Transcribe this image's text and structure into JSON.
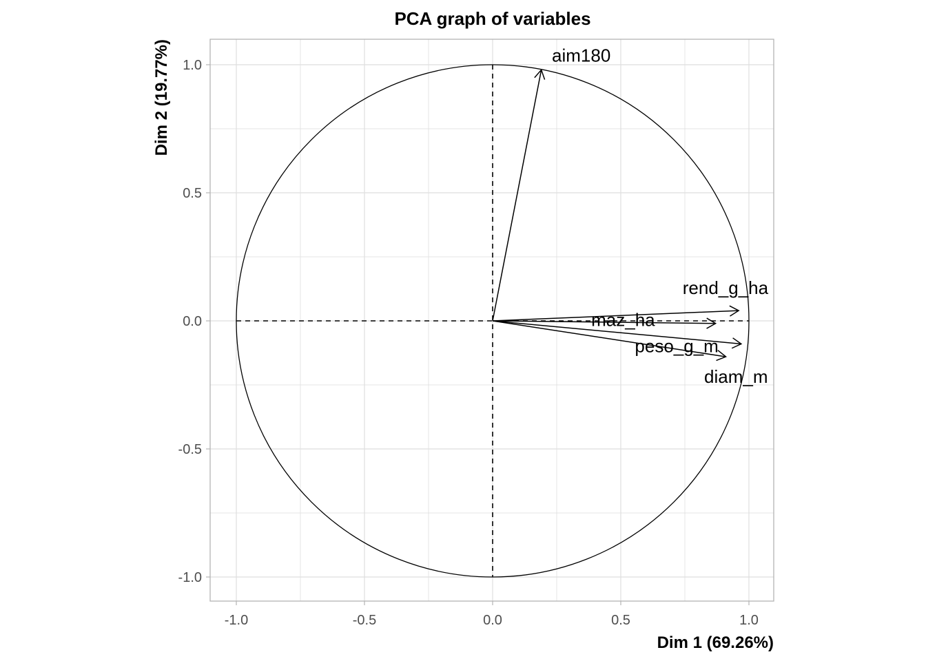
{
  "chart_data": {
    "type": "scatter",
    "subtype": "pca-correlation-circle",
    "title": "PCA graph of variables",
    "xlabel": "Dim 1 (69.26%)",
    "ylabel": "Dim 2 (19.77%)",
    "xlim": [
      -1.1,
      1.1
    ],
    "ylim": [
      -1.1,
      1.1
    ],
    "x_ticks": [
      -1.0,
      -0.5,
      0.0,
      0.5,
      1.0
    ],
    "x_tick_labels": [
      "-1.0",
      "-0.5",
      "0.0",
      "0.5",
      "1.0"
    ],
    "y_ticks": [
      -1.0,
      -0.5,
      0.0,
      0.5,
      1.0
    ],
    "y_tick_labels": [
      "-1.0",
      "-0.5",
      "0.0",
      "0.5",
      "1.0"
    ],
    "grid": true,
    "unit_circle": true,
    "variables": [
      {
        "name": "aim180",
        "x": 0.19,
        "y": 0.98
      },
      {
        "name": "rend_g_ha",
        "x": 0.96,
        "y": 0.04
      },
      {
        "name": "maz_ha",
        "x": 0.87,
        "y": -0.01
      },
      {
        "name": "peso_g_m",
        "x": 0.97,
        "y": -0.09
      },
      {
        "name": "diam_m",
        "x": 0.91,
        "y": -0.14
      }
    ],
    "colors": {
      "arrow": "#000000",
      "grid": "#dedede",
      "border": "#b3b3b3"
    }
  }
}
